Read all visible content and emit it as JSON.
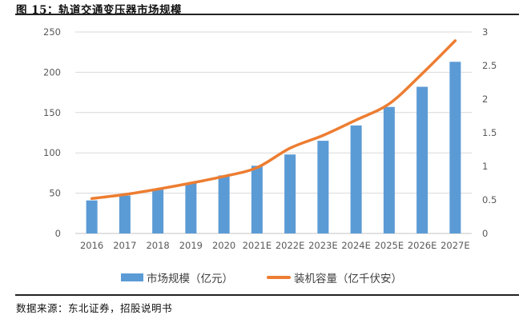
{
  "figure": {
    "title": "图 15：轨道交通变压器市场规模",
    "source": "数据来源：东北证券，招股说明书"
  },
  "colors": {
    "bar": "#5B9BD5",
    "line": "#ED7D31",
    "gridline": "#D9D9D9",
    "baseline": "#C6C6C6",
    "axis_label": "#595959",
    "rule": "#222222"
  },
  "chart_data": {
    "type": "bar",
    "subtype": "combo-bar-line",
    "title": "轨道交通变压器市场规模",
    "categories": [
      "2016",
      "2017",
      "2018",
      "2019",
      "2020",
      "2021E",
      "2022E",
      "2023E",
      "2024E",
      "2025E",
      "2026E",
      "2027E"
    ],
    "series": [
      {
        "name": "市场规模（亿元）",
        "type": "bar",
        "axis": "left",
        "color": "#5B9BD5",
        "values": [
          41,
          47,
          55,
          63,
          72,
          84,
          98,
          115,
          134,
          157,
          182,
          213
        ]
      },
      {
        "name": "装机容量（亿千伏安）",
        "type": "line",
        "axis": "right",
        "color": "#ED7D31",
        "values": [
          0.52,
          0.58,
          0.66,
          0.75,
          0.85,
          0.98,
          1.27,
          1.46,
          1.69,
          1.93,
          2.38,
          2.87
        ]
      }
    ],
    "left_axis": {
      "min": 0,
      "max": 250,
      "step": 50,
      "ticks": [
        "0",
        "50",
        "100",
        "150",
        "200",
        "250"
      ]
    },
    "right_axis": {
      "min": 0,
      "max": 3,
      "step": 0.5,
      "ticks": [
        "0",
        "0.5",
        "1",
        "1.5",
        "2",
        "2.5",
        "3"
      ]
    },
    "grid": true,
    "legend_position": "bottom"
  }
}
